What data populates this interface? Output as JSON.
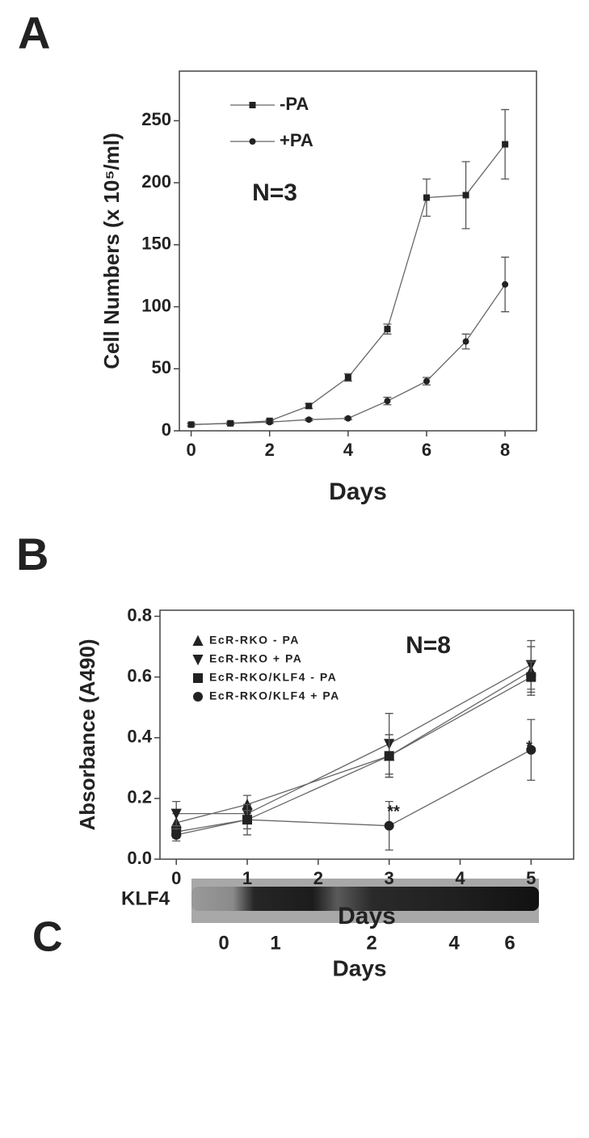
{
  "chart_data": [
    {
      "type": "line",
      "panel": "A",
      "xlabel": "Days",
      "ylabel": "Cell Numbers (x 10⁵/ml)",
      "xlim": [
        -0.3,
        8.8
      ],
      "xticks": [
        0,
        2,
        4,
        6,
        8
      ],
      "ylim": [
        0,
        290
      ],
      "yticks": [
        0,
        50,
        100,
        150,
        200,
        250
      ],
      "x": [
        0,
        1,
        2,
        3,
        4,
        5,
        6,
        7,
        8
      ],
      "annotations": [
        "N=3"
      ],
      "series": [
        {
          "name": "-PA",
          "color": "#222222",
          "marker": "square",
          "values": [
            5,
            6,
            8,
            20,
            43,
            82,
            188,
            190,
            231
          ],
          "errors": [
            1,
            1,
            1,
            2,
            3,
            4,
            15,
            27,
            28
          ]
        },
        {
          "name": "+PA",
          "color": "#222222",
          "marker": "circle",
          "values": [
            5,
            6,
            7,
            9,
            10,
            24,
            40,
            72,
            118
          ],
          "errors": [
            1,
            1,
            1,
            1,
            1,
            3,
            3,
            6,
            22
          ]
        }
      ]
    },
    {
      "type": "line",
      "panel": "B",
      "xlabel": "Days",
      "ylabel": "Absorbance (A490)",
      "xlim": [
        -0.23,
        5.6
      ],
      "xticks": [
        0,
        1,
        2,
        3,
        4,
        5
      ],
      "ylim": [
        0,
        0.82
      ],
      "yticks": [
        {
          "value": 0,
          "label": "0.0"
        },
        0.2,
        0.4,
        0.6,
        0.8
      ],
      "x": [
        0,
        1,
        3,
        5
      ],
      "annotations": [
        "N=8",
        "**",
        "*"
      ],
      "series": [
        {
          "name": "EcR-RKO - PA",
          "color": "#222222",
          "marker": "triangle-up",
          "values": [
            0.12,
            0.18,
            0.34,
            0.62
          ],
          "errors": [
            0.03,
            0.03,
            0.07,
            0.08
          ]
        },
        {
          "name": "EcR-RKO + PA",
          "color": "#222222",
          "marker": "triangle-down",
          "values": [
            0.15,
            0.15,
            0.38,
            0.64
          ],
          "errors": [
            0.04,
            0.03,
            0.1,
            0.08
          ]
        },
        {
          "name": "EcR-RKO/KLF4 - PA",
          "color": "#222222",
          "marker": "square",
          "values": [
            0.09,
            0.13,
            0.34,
            0.6
          ],
          "errors": [
            0.02,
            0.03,
            0.07,
            0.05
          ]
        },
        {
          "name": "EcR-RKO/KLF4 + PA",
          "color": "#222222",
          "marker": "circle",
          "values": [
            0.08,
            0.13,
            0.11,
            0.36
          ],
          "errors": [
            0.02,
            0.05,
            0.08,
            0.1
          ]
        }
      ]
    }
  ],
  "blot": {
    "panel": "C",
    "label": "KLF4",
    "lanes": [
      "0",
      "1",
      "2",
      "4",
      "6"
    ],
    "xlabel": "Days"
  }
}
